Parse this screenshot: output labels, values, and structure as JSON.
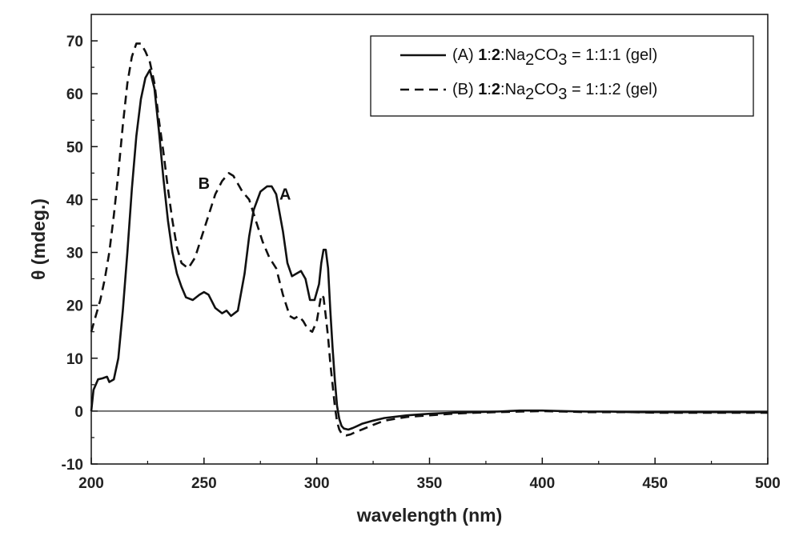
{
  "chart_data": {
    "type": "line",
    "xlabel": "wavelength (nm)",
    "ylabel": "θ (mdeg.)",
    "xlim": [
      200,
      500
    ],
    "ylim": [
      -10,
      75
    ],
    "xticks": [
      200,
      250,
      300,
      350,
      400,
      450,
      500
    ],
    "yticks": [
      -10,
      0,
      10,
      20,
      30,
      40,
      50,
      60,
      70
    ],
    "grid": false,
    "zero_line": true,
    "legend_position": "top-right",
    "series": [
      {
        "name": "(A) 1:2:Na2CO3 = 1:1:1 (gel)",
        "legend": {
          "prefix": "(A) ",
          "bold1": "1",
          "sep1": ":",
          "bold2": "2",
          "sep2": ":Na",
          "sub1": "2",
          "mid": "CO",
          "sub2": "3",
          "suffix": " = 1:1:1 (gel)"
        },
        "style": "solid",
        "x": [
          200,
          201,
          203,
          205,
          207,
          208,
          210,
          212,
          214,
          216,
          218,
          220,
          222,
          224,
          226,
          228,
          230,
          232,
          234,
          236,
          238,
          240,
          242,
          245,
          248,
          250,
          252,
          255,
          258,
          260,
          262,
          265,
          268,
          270,
          272,
          275,
          278,
          280,
          282,
          285,
          287,
          289,
          291,
          293,
          295,
          297,
          299,
          301,
          302,
          303,
          304,
          305,
          306,
          307,
          308,
          309,
          310,
          311,
          312,
          314,
          316,
          318,
          320,
          325,
          330,
          340,
          350,
          360,
          370,
          380,
          390,
          400,
          410,
          420,
          430,
          440,
          450,
          460,
          470,
          480,
          490,
          500
        ],
        "y": [
          0,
          4,
          6,
          6.2,
          6.5,
          5.5,
          6,
          10,
          19,
          30,
          42,
          52,
          59,
          63,
          64.5,
          61,
          53,
          44,
          36,
          30,
          26,
          23.5,
          21.5,
          21,
          22,
          22.5,
          22,
          19.5,
          18.5,
          19,
          18,
          19,
          26,
          33,
          38,
          41.5,
          42.5,
          42.5,
          41,
          34,
          28,
          25.5,
          26,
          26.5,
          25,
          21,
          21,
          24,
          28,
          30.5,
          30.5,
          27,
          19,
          12,
          6,
          1,
          -1.5,
          -2.8,
          -3.3,
          -3.5,
          -3.2,
          -2.8,
          -2.4,
          -1.8,
          -1.3,
          -0.8,
          -0.5,
          -0.3,
          -0.2,
          -0.1,
          0.1,
          0.1,
          0,
          -0.1,
          -0.1,
          -0.2,
          -0.2,
          -0.2,
          -0.2,
          -0.2,
          -0.2,
          -0.2
        ]
      },
      {
        "name": "(B) 1:2:Na2CO3 = 1:1:2 (gel)",
        "legend": {
          "prefix": "(B) ",
          "bold1": "1",
          "sep1": ":",
          "bold2": "2",
          "sep2": ":Na",
          "sub1": "2",
          "mid": "CO",
          "sub2": "3",
          "suffix": " = 1:1:2 (gel)"
        },
        "style": "dashed",
        "x": [
          200,
          202,
          204,
          206,
          208,
          210,
          212,
          214,
          216,
          218,
          220,
          222,
          224,
          226,
          228,
          230,
          232,
          234,
          236,
          238,
          240,
          243,
          246,
          249,
          252,
          255,
          258,
          261,
          263,
          265,
          267,
          270,
          273,
          276,
          279,
          282,
          285,
          288,
          290,
          292,
          294,
          296,
          298,
          300,
          301,
          302,
          303,
          304,
          305,
          306,
          307,
          308,
          309,
          310,
          311,
          312,
          313,
          315,
          317,
          320,
          325,
          330,
          340,
          350,
          360,
          370,
          380,
          390,
          400,
          410,
          420,
          430,
          440,
          450,
          460,
          470,
          480,
          490,
          500
        ],
        "y": [
          15,
          18,
          21,
          25,
          30,
          37,
          45,
          54,
          62,
          67,
          69.5,
          69.5,
          68,
          66,
          62,
          55,
          49,
          42,
          36,
          31,
          28,
          27,
          29,
          33,
          37,
          41,
          43.5,
          45,
          44.5,
          43,
          41.5,
          40,
          36,
          32,
          29,
          27,
          22,
          18,
          17.5,
          18,
          17,
          15.5,
          15,
          17,
          19.5,
          22,
          21.5,
          18,
          14,
          9,
          5,
          1,
          -2,
          -3.5,
          -4.2,
          -4.5,
          -4.6,
          -4.4,
          -4,
          -3.5,
          -2.6,
          -1.8,
          -1.1,
          -0.8,
          -0.5,
          -0.3,
          -0.2,
          -0.1,
          0,
          -0.1,
          -0.2,
          -0.2,
          -0.2,
          -0.3,
          -0.3,
          -0.3,
          -0.3,
          -0.3,
          -0.3
        ]
      }
    ],
    "annotations": [
      {
        "text": "B",
        "x": 250,
        "y": 42
      },
      {
        "text": "A",
        "x": 286,
        "y": 40
      }
    ]
  }
}
